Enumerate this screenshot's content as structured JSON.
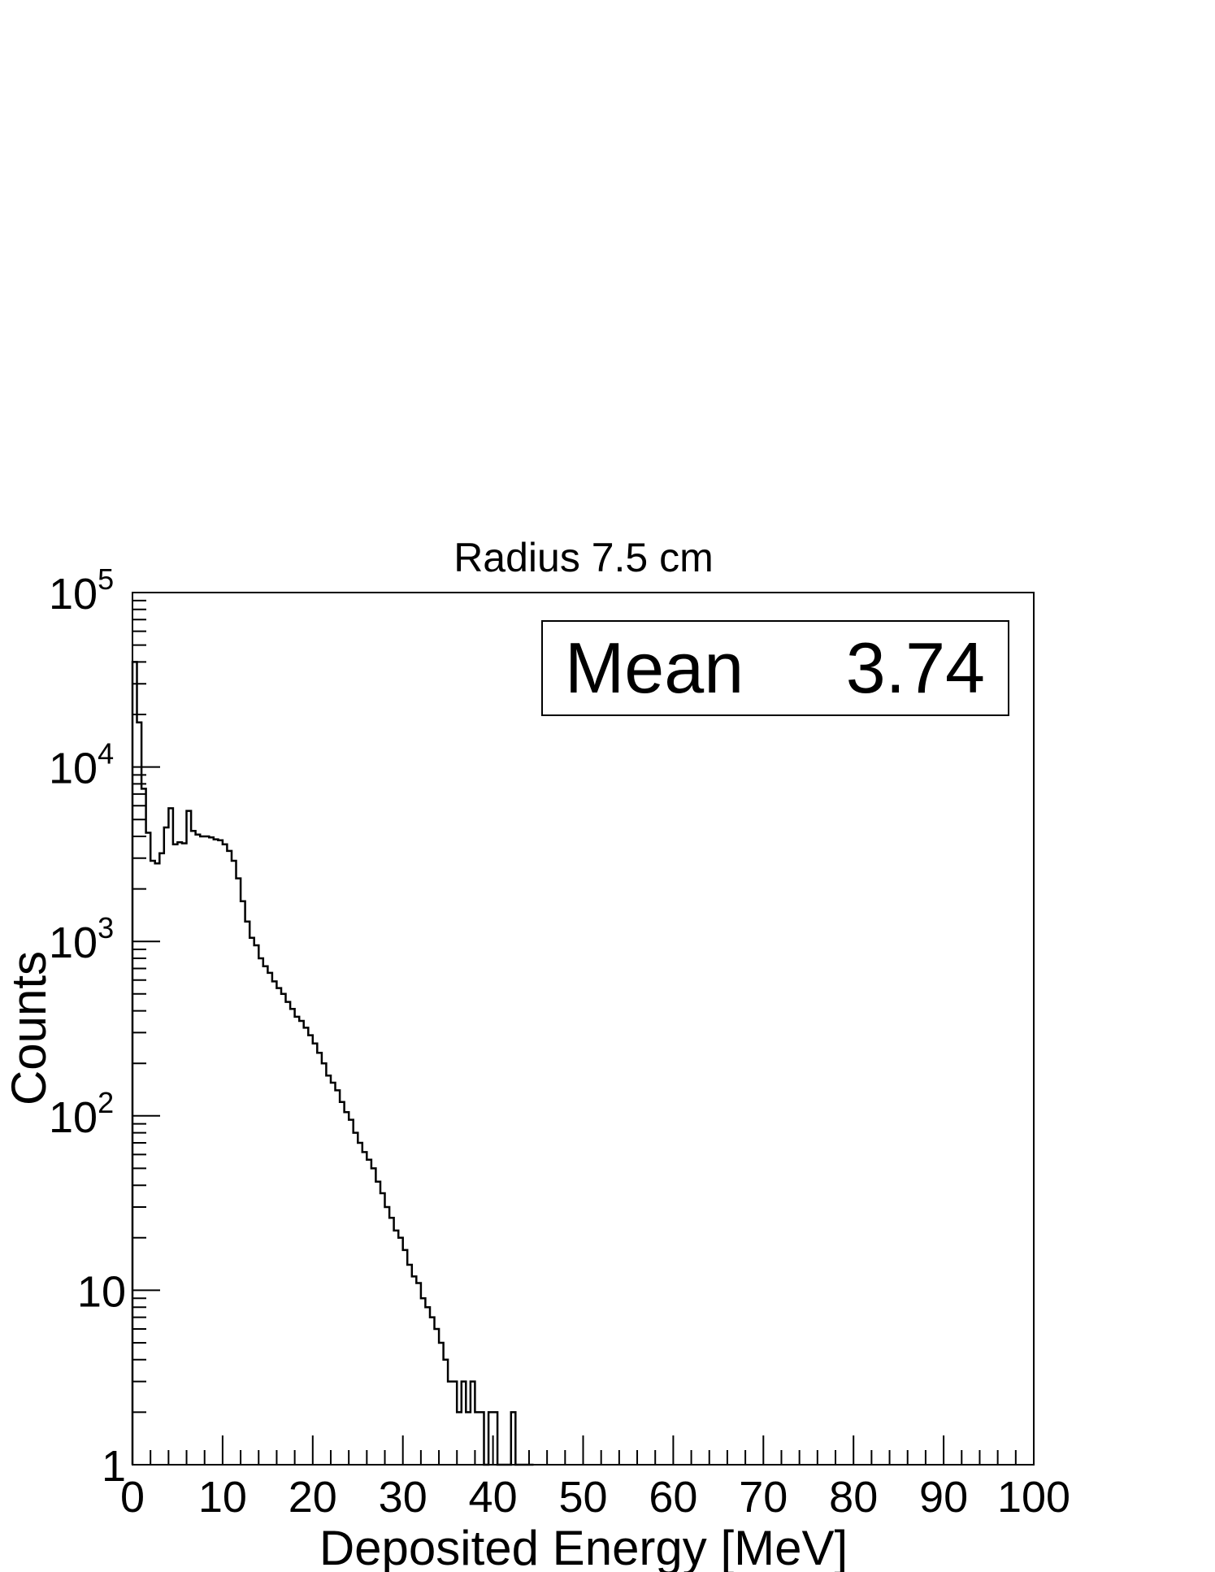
{
  "chart_data": {
    "type": "histogram",
    "title": "Radius 7.5 cm",
    "xlabel": "Deposited Energy [MeV]",
    "ylabel": "Counts",
    "xlim": [
      0,
      100
    ],
    "ylim": [
      1,
      100000
    ],
    "yscale": "log",
    "x_ticks": [
      {
        "value": 0,
        "label": "0"
      },
      {
        "value": 10,
        "label": "10"
      },
      {
        "value": 20,
        "label": "20"
      },
      {
        "value": 30,
        "label": "30"
      },
      {
        "value": 40,
        "label": "40"
      },
      {
        "value": 50,
        "label": "50"
      },
      {
        "value": 60,
        "label": "60"
      },
      {
        "value": 70,
        "label": "70"
      },
      {
        "value": 80,
        "label": "80"
      },
      {
        "value": 90,
        "label": "90"
      },
      {
        "value": 100,
        "label": "100"
      }
    ],
    "y_ticks": [
      {
        "value": 1,
        "base": "1",
        "exp": ""
      },
      {
        "value": 10,
        "base": "10",
        "exp": ""
      },
      {
        "value": 100,
        "base": "10",
        "exp": "2"
      },
      {
        "value": 1000,
        "base": "10",
        "exp": "3"
      },
      {
        "value": 10000,
        "base": "10",
        "exp": "4"
      },
      {
        "value": 100000,
        "base": "10",
        "exp": "5"
      }
    ],
    "stats": {
      "label": "Mean",
      "value": "3.74"
    },
    "grid": false,
    "color": "#000000",
    "series": [
      {
        "x": [
          0,
          0.5,
          1,
          1.5,
          2,
          2.5,
          3,
          3.5,
          4,
          4.5,
          5,
          5.5,
          6,
          6.5,
          7,
          7.5,
          8,
          8.5,
          9,
          9.5,
          10,
          10.5,
          11,
          11.5,
          12,
          12.5,
          13,
          13.5,
          14,
          14.5,
          15,
          15.5,
          16,
          16.5,
          17,
          17.5,
          18,
          18.5,
          19,
          19.5,
          20,
          20.5,
          21,
          21.5,
          22,
          22.5,
          23,
          23.5,
          24,
          24.5,
          25,
          25.5,
          26,
          26.5,
          27,
          27.5,
          28,
          28.5,
          29,
          29.5,
          30,
          30.5,
          31,
          31.5,
          32,
          32.5,
          33,
          33.5,
          34,
          34.5,
          35,
          35.5,
          36,
          36.5,
          37,
          37.5,
          38,
          38.5,
          39,
          39.5,
          40,
          40.5,
          41,
          41.5,
          42,
          42.5,
          43,
          43.5,
          44
        ],
        "y": [
          40000,
          18000,
          7500,
          4200,
          2900,
          2800,
          3200,
          4500,
          5800,
          3600,
          3700,
          3650,
          5600,
          4300,
          4100,
          4000,
          4000,
          3950,
          3850,
          3800,
          3600,
          3300,
          2900,
          2300,
          1700,
          1300,
          1050,
          950,
          800,
          720,
          660,
          590,
          540,
          500,
          450,
          410,
          370,
          350,
          320,
          290,
          260,
          230,
          200,
          170,
          155,
          140,
          120,
          105,
          95,
          80,
          70,
          62,
          56,
          50,
          42,
          36,
          30,
          26,
          22,
          20,
          17,
          14,
          12,
          11,
          9,
          8,
          7,
          6,
          5,
          4,
          3,
          3,
          2,
          3,
          2,
          3,
          2,
          2,
          1,
          2,
          2,
          1,
          1,
          1,
          2,
          1,
          1,
          1,
          1
        ]
      }
    ]
  }
}
